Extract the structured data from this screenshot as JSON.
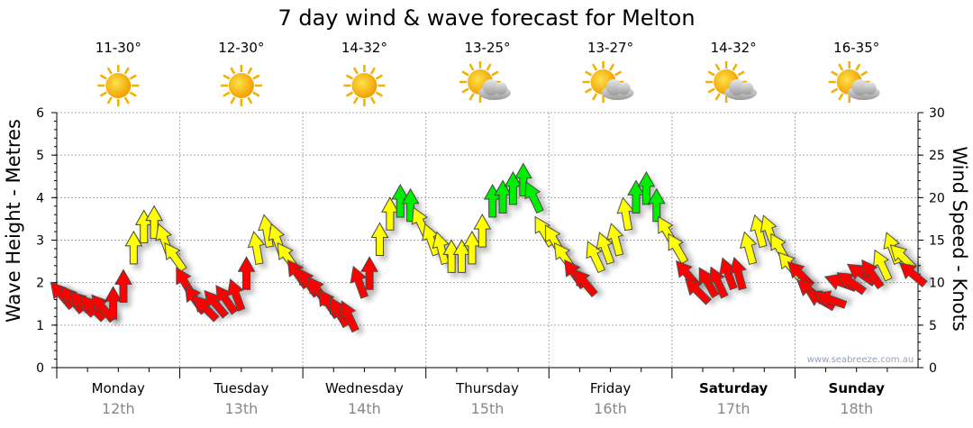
{
  "chart_data": {
    "type": "scatter",
    "title": "7 day wind & wave forecast for Melton",
    "ylabel_left": "Wave Height - Metres",
    "ylabel_right": "Wind Speed - Knots",
    "ylim_left": [
      0,
      6
    ],
    "ylim_right": [
      0,
      30
    ],
    "left_ticks": [
      "0",
      "1",
      "2",
      "3",
      "4",
      "5",
      "6"
    ],
    "right_ticks": [
      "0",
      "5",
      "10",
      "15",
      "20",
      "25",
      "30"
    ],
    "grid": true,
    "watermark": "www.seabreeze.com.au",
    "colors": {
      "low": "#ff0000",
      "mid": "#ffff00",
      "high": "#00ee00"
    },
    "thresholds_knots": [
      12,
      19
    ],
    "days": [
      {
        "day": "Monday",
        "date": "12th",
        "temp": "11-30°",
        "icon": "sun",
        "bold": false,
        "knots": [
          8.5,
          8,
          7.5,
          7,
          7,
          7.5,
          9.5,
          14,
          16.5,
          17,
          15,
          13
        ],
        "dir": [
          -40,
          -40,
          -45,
          -45,
          -40,
          0,
          0,
          0,
          0,
          0,
          -20,
          -35
        ]
      },
      {
        "day": "Tuesday",
        "date": "13th",
        "temp": "12-30°",
        "icon": "sun",
        "bold": false,
        "knots": [
          10,
          8,
          7,
          7.5,
          8,
          8.5,
          11,
          14,
          16,
          15,
          13,
          11
        ],
        "dir": [
          -30,
          -35,
          -45,
          -40,
          -35,
          -20,
          0,
          -10,
          -10,
          -20,
          -35,
          -35
        ]
      },
      {
        "day": "Wednesday",
        "date": "14th",
        "temp": "14-32°",
        "icon": "sun",
        "bold": false,
        "knots": [
          10,
          9,
          7.5,
          6.5,
          6,
          10,
          11,
          15,
          18,
          19.5,
          19,
          17
        ],
        "dir": [
          -35,
          -35,
          -35,
          -30,
          -25,
          -20,
          0,
          0,
          0,
          0,
          0,
          -25
        ]
      },
      {
        "day": "Thursday",
        "date": "15th",
        "temp": "13-25°",
        "icon": "sun-cloud",
        "bold": false,
        "knots": [
          15,
          14,
          13,
          13,
          14,
          16,
          19.5,
          20,
          21,
          22,
          20,
          16
        ],
        "dir": [
          -20,
          -15,
          0,
          0,
          0,
          0,
          0,
          0,
          0,
          0,
          -25,
          -30
        ]
      },
      {
        "day": "Friday",
        "date": "16th",
        "temp": "13-27°",
        "icon": "sun-cloud",
        "bold": false,
        "knots": [
          15,
          13,
          11,
          10,
          13,
          14,
          15,
          18,
          20,
          21,
          19,
          16
        ],
        "dir": [
          -30,
          -35,
          -35,
          -40,
          -25,
          -20,
          -15,
          -10,
          0,
          0,
          0,
          -30
        ]
      },
      {
        "day": "Saturday",
        "date": "17th",
        "temp": "14-32°",
        "icon": "sun-cloud",
        "bold": true,
        "knots": [
          14,
          11,
          9,
          10,
          10,
          11,
          11,
          14,
          16,
          16,
          14,
          12
        ],
        "dir": [
          -30,
          -40,
          -45,
          -30,
          -25,
          -20,
          -15,
          -15,
          -15,
          -20,
          -30,
          -40
        ]
      },
      {
        "day": "Sunday",
        "date": "18th",
        "temp": "16-35°",
        "icon": "sun-cloud",
        "bold": true,
        "knots": [
          11,
          9,
          8,
          8,
          10,
          10,
          11,
          11,
          12,
          14,
          13,
          11
        ],
        "dir": [
          -45,
          -50,
          -60,
          -70,
          -70,
          -55,
          -55,
          -35,
          -25,
          -20,
          -45,
          -50
        ]
      }
    ]
  }
}
